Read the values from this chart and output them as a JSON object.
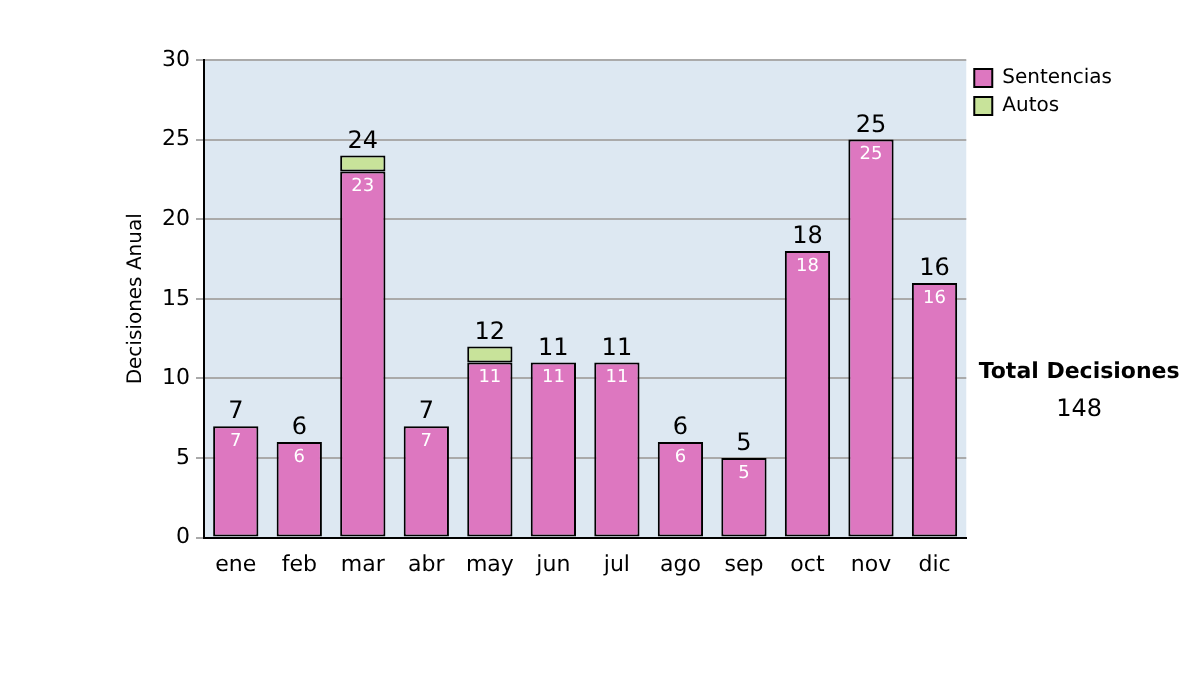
{
  "chart_data": {
    "type": "bar",
    "ylabel": "Decisiones Anual",
    "stacked": true,
    "categories": [
      "ene",
      "feb",
      "mar",
      "abr",
      "may",
      "jun",
      "jul",
      "ago",
      "sep",
      "oct",
      "nov",
      "dic"
    ],
    "series": [
      {
        "name": "Sentencias",
        "color": "#dd77c0",
        "values": [
          7,
          6,
          23,
          7,
          11,
          11,
          11,
          6,
          5,
          18,
          25,
          16
        ],
        "value_labels": [
          "7",
          "6",
          "23",
          "7",
          "11",
          "11",
          "11",
          "6",
          "5",
          "18",
          "25",
          "16"
        ]
      },
      {
        "name": "Autos",
        "color": "#c8e39a",
        "values": [
          null,
          null,
          1,
          null,
          1,
          null,
          null,
          null,
          null,
          null,
          null,
          null
        ]
      }
    ],
    "totals": [
      "7",
      "6",
      "24",
      "7",
      "12",
      "11",
      "11",
      "6",
      "5",
      "18",
      "25",
      "16"
    ],
    "ylim": [
      0,
      30
    ],
    "yticks": [
      0,
      5,
      10,
      15,
      20,
      25,
      30
    ],
    "grid": "y",
    "legend": "right",
    "annotations": [
      "Total Decisiones",
      "148"
    ]
  }
}
